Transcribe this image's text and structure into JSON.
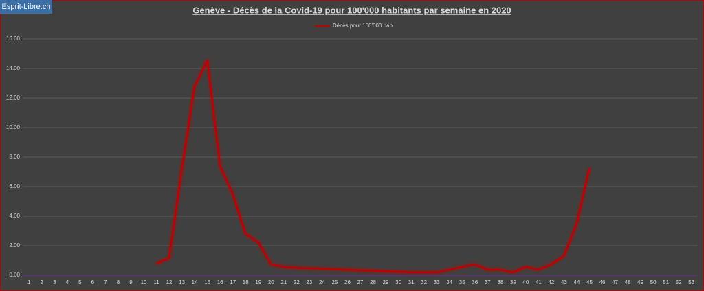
{
  "watermark": "Esprit-Libre.ch",
  "chart_data": {
    "type": "line",
    "title": "Genève - Décès de la Covid-19 pour 100'000  habitants par semaine en 2020",
    "categories": [
      "1",
      "2",
      "3",
      "4",
      "5",
      "6",
      "7",
      "8",
      "9",
      "10",
      "11",
      "12",
      "13",
      "14",
      "15",
      "16",
      "17",
      "18",
      "19",
      "20",
      "21",
      "22",
      "23",
      "24",
      "25",
      "26",
      "27",
      "28",
      "29",
      "30",
      "31",
      "32",
      "33",
      "34",
      "35",
      "36",
      "37",
      "38",
      "39",
      "40",
      "41",
      "42",
      "43",
      "44",
      "45",
      "46",
      "47",
      "48",
      "49",
      "50",
      "51",
      "52",
      "53"
    ],
    "series": [
      {
        "name": "Décès pour 100'000 hab",
        "color": "#c00000",
        "values": [
          null,
          null,
          null,
          null,
          null,
          null,
          null,
          null,
          null,
          null,
          0.79,
          1.16,
          7.2,
          12.8,
          14.56,
          7.4,
          5.5,
          2.8,
          2.23,
          0.74,
          0.56,
          0.5,
          0.47,
          0.44,
          0.4,
          0.37,
          0.33,
          0.3,
          0.26,
          0.23,
          0.19,
          0.19,
          0.19,
          0.37,
          0.56,
          0.74,
          0.37,
          0.37,
          0.19,
          0.56,
          0.37,
          0.74,
          1.3,
          3.5,
          7.26,
          null,
          null,
          null,
          null,
          null,
          null,
          null,
          null
        ]
      }
    ],
    "ylim": [
      0,
      16
    ],
    "yticks": [
      {
        "value": 0,
        "label": "0.00"
      },
      {
        "value": 2,
        "label": "2.00"
      },
      {
        "value": 4,
        "label": "4.00"
      },
      {
        "value": 6,
        "label": "6.00"
      },
      {
        "value": 8,
        "label": "8.00"
      },
      {
        "value": 10,
        "label": "10.00"
      },
      {
        "value": 12,
        "label": "12.00"
      },
      {
        "value": 14,
        "label": "14.00"
      },
      {
        "value": 16,
        "label": "16.00"
      }
    ],
    "grid": true,
    "legend": "top"
  }
}
